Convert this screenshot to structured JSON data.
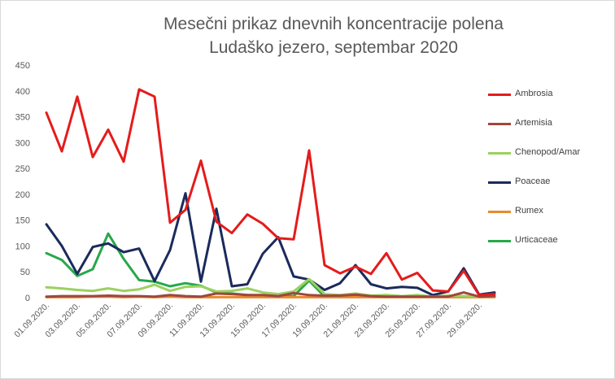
{
  "chart_data": {
    "type": "line",
    "title": "Mesečni prikaz dnevnih koncentracije polena",
    "subtitle": "Ludaško jezero, septembar 2020",
    "ylim": [
      0,
      450
    ],
    "yticks": [
      0,
      50,
      100,
      150,
      200,
      250,
      300,
      350,
      400,
      450
    ],
    "grid": false,
    "legend": "right",
    "x": [
      "01.09.2020.",
      "02.09.2020.",
      "03.09.2020.",
      "04.09.2020.",
      "05.09.2020.",
      "06.09.2020.",
      "07.09.2020.",
      "08.09.2020.",
      "09.09.2020.",
      "10.09.2020.",
      "11.09.2020.",
      "12.09.2020.",
      "13.09.2020.",
      "14.09.2020.",
      "15.09.2020.",
      "16.09.2020.",
      "17.09.2020.",
      "18.09.2020.",
      "19.09.2020.",
      "20.09.2020.",
      "21.09.2020.",
      "22.09.2020.",
      "23.09.2020.",
      "24.09.2020.",
      "25.09.2020.",
      "26.09.2020.",
      "27.09.2020.",
      "28.09.2020.",
      "29.09.2020.",
      "30.09.2020."
    ],
    "x_tick_labels": [
      "01.09.2020.",
      "03.09.2020.",
      "05.09.2020.",
      "07.09.2020.",
      "09.09.2020.",
      "11.09.2020.",
      "13.09.2020.",
      "15.09.2020.",
      "17.09.2020.",
      "19.09.2020.",
      "21.09.2020.",
      "23.09.2020.",
      "25.09.2020.",
      "27.09.2020.",
      "29.09.2020."
    ],
    "series": [
      {
        "name": "Ambrosia",
        "color": "#e51b1b",
        "values": [
          358,
          283,
          389,
          272,
          325,
          263,
          403,
          389,
          145,
          170,
          265,
          147,
          125,
          161,
          143,
          115,
          113,
          285,
          63,
          47,
          60,
          46,
          86,
          35,
          48,
          14,
          12,
          52,
          5,
          7
        ]
      },
      {
        "name": "Artemisia",
        "color": "#a0463c",
        "values": [
          2,
          3,
          3,
          3,
          4,
          3,
          3,
          2,
          5,
          3,
          2,
          8,
          7,
          5,
          5,
          3,
          9,
          5,
          4,
          4,
          6,
          3,
          2,
          2,
          2,
          2,
          2,
          10,
          2,
          3
        ]
      },
      {
        "name": "Chenopod/Amar",
        "color": "#9bd15f",
        "values": [
          20,
          18,
          15,
          13,
          18,
          13,
          16,
          25,
          13,
          21,
          22,
          12,
          13,
          18,
          10,
          7,
          12,
          36,
          7,
          5,
          8,
          4,
          5,
          3,
          5,
          2,
          4,
          3,
          2,
          2
        ]
      },
      {
        "name": "Poaceae",
        "color": "#1b2a5c",
        "values": [
          142,
          100,
          46,
          98,
          105,
          88,
          95,
          32,
          92,
          202,
          31,
          172,
          22,
          26,
          85,
          117,
          41,
          35,
          15,
          28,
          63,
          26,
          18,
          21,
          19,
          5,
          12,
          57,
          6,
          10
        ]
      },
      {
        "name": "Rumex",
        "color": "#e88a2d",
        "values": [
          1,
          1,
          1,
          2,
          2,
          1,
          2,
          1,
          2,
          1,
          1,
          1,
          1,
          1,
          1,
          1,
          1,
          1,
          1,
          1,
          1,
          1,
          1,
          1,
          1,
          1,
          1,
          1,
          1,
          1
        ]
      },
      {
        "name": "Urticaceae",
        "color": "#27a84a",
        "values": [
          86,
          73,
          42,
          55,
          124,
          75,
          34,
          31,
          22,
          28,
          23,
          10,
          8,
          5,
          4,
          3,
          3,
          33,
          2,
          2,
          2,
          2,
          2,
          2,
          2,
          2,
          2,
          2,
          2,
          2
        ]
      }
    ]
  }
}
